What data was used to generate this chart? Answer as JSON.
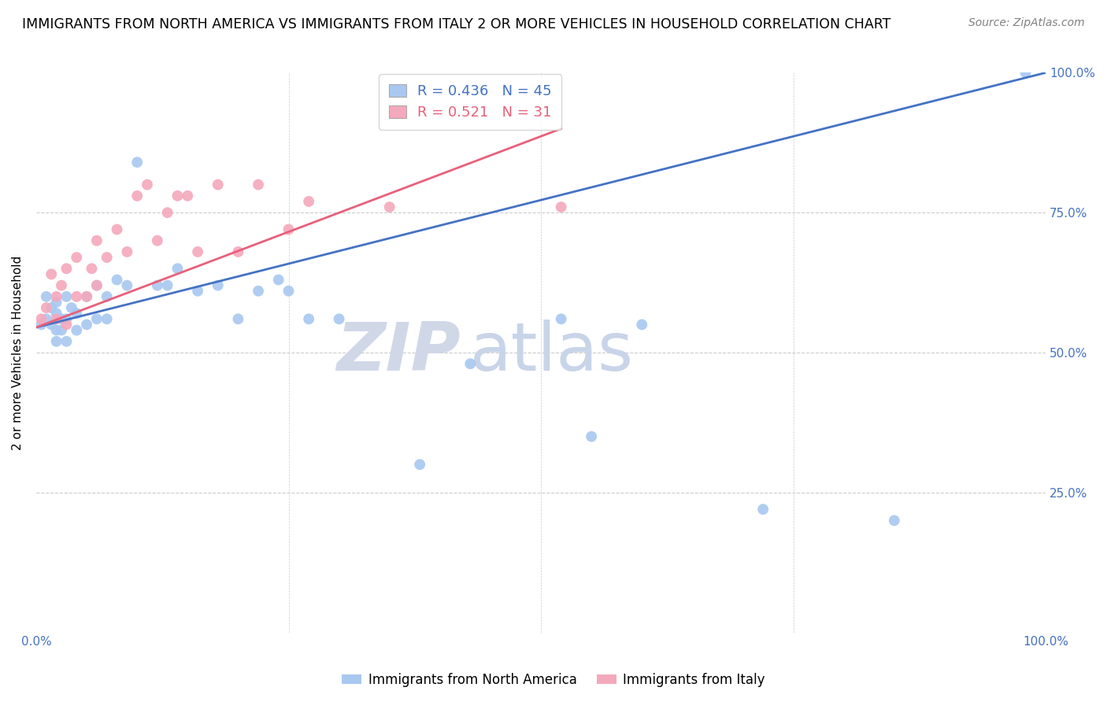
{
  "title": "IMMIGRANTS FROM NORTH AMERICA VS IMMIGRANTS FROM ITALY 2 OR MORE VEHICLES IN HOUSEHOLD CORRELATION CHART",
  "source": "Source: ZipAtlas.com",
  "ylabel": "2 or more Vehicles in Household",
  "xlim": [
    0,
    1.0
  ],
  "ylim": [
    0,
    1.0
  ],
  "blue_R": 0.436,
  "blue_N": 45,
  "pink_R": 0.521,
  "pink_N": 31,
  "blue_color": "#A8C8F0",
  "pink_color": "#F4A8BC",
  "blue_line_color": "#4472C4",
  "pink_line_color": "#E8607A",
  "title_fontsize": 12.5,
  "watermark_zip": "ZIP",
  "watermark_atlas": "atlas",
  "watermark_color_zip": "#D0D8E8",
  "watermark_color_atlas": "#C8D4E8",
  "blue_x": [
    0.005,
    0.01,
    0.01,
    0.015,
    0.015,
    0.02,
    0.02,
    0.02,
    0.02,
    0.025,
    0.025,
    0.03,
    0.03,
    0.03,
    0.035,
    0.04,
    0.04,
    0.05,
    0.05,
    0.06,
    0.06,
    0.07,
    0.07,
    0.08,
    0.09,
    0.1,
    0.12,
    0.13,
    0.14,
    0.16,
    0.18,
    0.2,
    0.22,
    0.24,
    0.25,
    0.27,
    0.3,
    0.38,
    0.43,
    0.52,
    0.55,
    0.6,
    0.72,
    0.85,
    0.98
  ],
  "blue_y": [
    0.55,
    0.56,
    0.6,
    0.55,
    0.58,
    0.52,
    0.54,
    0.57,
    0.59,
    0.54,
    0.56,
    0.52,
    0.56,
    0.6,
    0.58,
    0.54,
    0.57,
    0.55,
    0.6,
    0.56,
    0.62,
    0.56,
    0.6,
    0.63,
    0.62,
    0.84,
    0.62,
    0.62,
    0.65,
    0.61,
    0.62,
    0.56,
    0.61,
    0.63,
    0.61,
    0.56,
    0.56,
    0.3,
    0.48,
    0.56,
    0.35,
    0.55,
    0.22,
    0.2,
    1.0
  ],
  "pink_x": [
    0.005,
    0.01,
    0.015,
    0.02,
    0.02,
    0.025,
    0.03,
    0.03,
    0.04,
    0.04,
    0.05,
    0.055,
    0.06,
    0.06,
    0.07,
    0.08,
    0.09,
    0.1,
    0.11,
    0.12,
    0.13,
    0.14,
    0.15,
    0.16,
    0.18,
    0.2,
    0.22,
    0.25,
    0.27,
    0.35,
    0.52
  ],
  "pink_y": [
    0.56,
    0.58,
    0.64,
    0.56,
    0.6,
    0.62,
    0.55,
    0.65,
    0.6,
    0.67,
    0.6,
    0.65,
    0.62,
    0.7,
    0.67,
    0.72,
    0.68,
    0.78,
    0.8,
    0.7,
    0.75,
    0.78,
    0.78,
    0.68,
    0.8,
    0.68,
    0.8,
    0.72,
    0.77,
    0.76,
    0.76
  ],
  "blue_line_x": [
    0.0,
    1.0
  ],
  "blue_line_y": [
    0.545,
    1.0
  ],
  "pink_line_x": [
    0.0,
    0.52
  ],
  "pink_line_y": [
    0.545,
    0.9
  ]
}
